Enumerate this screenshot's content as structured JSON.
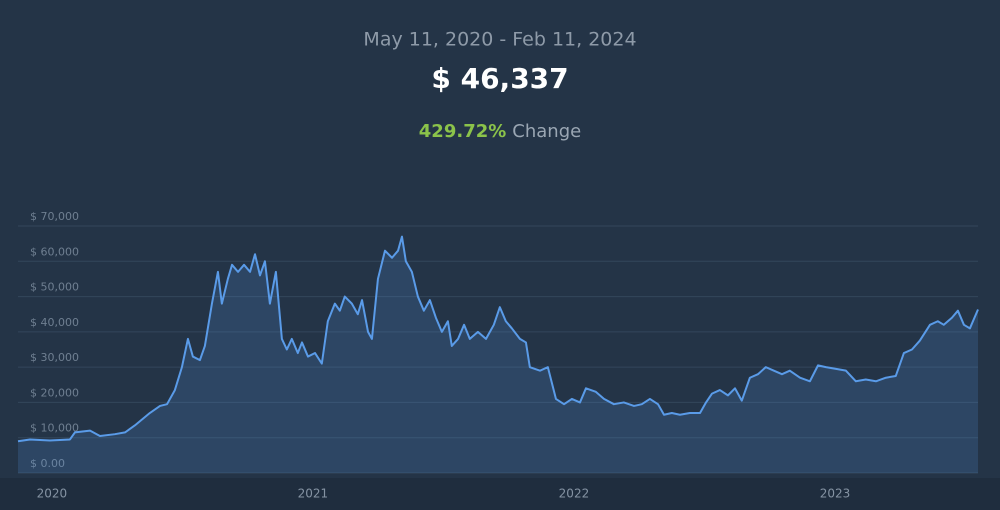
{
  "header": {
    "date_range": "May 11, 2020 - Feb 11, 2024",
    "price": "$ 46,337",
    "change": "429.72%",
    "change_label": "Change"
  },
  "chart_data": {
    "type": "line",
    "color": "#5a9be8",
    "grid": true,
    "xlim": [
      2019.87,
      2023.548
    ],
    "xticks": [
      2020,
      2021,
      2022,
      2023
    ],
    "ylim": [
      0,
      70000
    ],
    "yticks": [
      {
        "value": 0,
        "label": "$ 0.00"
      },
      {
        "value": 10000,
        "label": "$ 10,000"
      },
      {
        "value": 20000,
        "label": "$ 20,000"
      },
      {
        "value": 30000,
        "label": "$ 30,000"
      },
      {
        "value": 40000,
        "label": "$ 40,000"
      },
      {
        "value": 50000,
        "label": "$ 50,000"
      },
      {
        "value": 60000,
        "label": "$ 60,000"
      },
      {
        "value": 70000,
        "label": "$ 70,000"
      }
    ],
    "x": [
      2019.87,
      2019.916,
      2019.992,
      2020.069,
      2020.088,
      2020.146,
      2020.184,
      2020.241,
      2020.28,
      2020.318,
      2020.375,
      2020.414,
      2020.441,
      2020.471,
      2020.498,
      2020.521,
      2020.54,
      2020.567,
      2020.586,
      2020.613,
      2020.636,
      2020.651,
      2020.674,
      2020.69,
      2020.713,
      2020.736,
      2020.759,
      2020.778,
      2020.797,
      2020.816,
      2020.835,
      2020.858,
      2020.881,
      2020.9,
      2020.919,
      2020.942,
      2020.958,
      2020.981,
      2021.008,
      2021.034,
      2021.057,
      2021.084,
      2021.103,
      2021.122,
      2021.149,
      2021.172,
      2021.188,
      2021.211,
      2021.226,
      2021.249,
      2021.276,
      2021.303,
      2021.326,
      2021.341,
      2021.356,
      2021.379,
      2021.402,
      2021.425,
      2021.448,
      2021.471,
      2021.494,
      2021.517,
      2021.532,
      2021.556,
      2021.579,
      2021.601,
      2021.632,
      2021.663,
      2021.693,
      2021.716,
      2021.739,
      2021.762,
      2021.793,
      2021.816,
      2021.831,
      2021.87,
      2021.9,
      2021.931,
      2021.962,
      2021.992,
      2022.023,
      2022.046,
      2022.084,
      2022.115,
      2022.153,
      2022.191,
      2022.23,
      2022.26,
      2022.291,
      2022.322,
      2022.345,
      2022.375,
      2022.406,
      2022.444,
      2022.483,
      2022.506,
      2022.529,
      2022.559,
      2022.59,
      2022.617,
      2022.643,
      2022.674,
      2022.705,
      2022.735,
      2022.766,
      2022.797,
      2022.827,
      2022.866,
      2022.904,
      2022.935,
      2022.965,
      2023.004,
      2023.042,
      2023.08,
      2023.118,
      2023.157,
      2023.195,
      2023.233,
      2023.264,
      2023.295,
      2023.325,
      2023.364,
      2023.394,
      2023.417,
      2023.448,
      2023.471,
      2023.494,
      2023.517,
      2023.548
    ],
    "values": [
      9000,
      9500,
      9200,
      9500,
      11500,
      12000,
      10500,
      11000,
      11500,
      13500,
      17000,
      19000,
      19500,
      23500,
      30000,
      38000,
      33000,
      32000,
      36000,
      48000,
      57000,
      48000,
      55000,
      59000,
      57000,
      59000,
      57000,
      62000,
      56000,
      60000,
      48000,
      57000,
      38000,
      35000,
      38000,
      34000,
      37000,
      33000,
      34000,
      31000,
      43000,
      48000,
      46000,
      50000,
      48000,
      45000,
      49000,
      40000,
      38000,
      55000,
      63000,
      61000,
      63000,
      67000,
      60000,
      57000,
      50000,
      46000,
      49000,
      44000,
      40000,
      43000,
      36000,
      38000,
      42000,
      38000,
      40000,
      38000,
      42000,
      47000,
      43000,
      41000,
      38000,
      37000,
      30000,
      29000,
      30000,
      21000,
      19500,
      21000,
      20000,
      24000,
      23000,
      21000,
      19500,
      20000,
      19000,
      19500,
      21000,
      19500,
      16500,
      17000,
      16500,
      17000,
      17000,
      20000,
      22500,
      23500,
      22000,
      24000,
      20500,
      27000,
      28000,
      30000,
      29000,
      28000,
      29000,
      27000,
      26000,
      30500,
      30000,
      29500,
      29000,
      26000,
      26500,
      26000,
      27000,
      27500,
      34000,
      35000,
      37500,
      42000,
      43000,
      42000,
      44000,
      46000,
      42000,
      41000,
      46337
    ]
  }
}
